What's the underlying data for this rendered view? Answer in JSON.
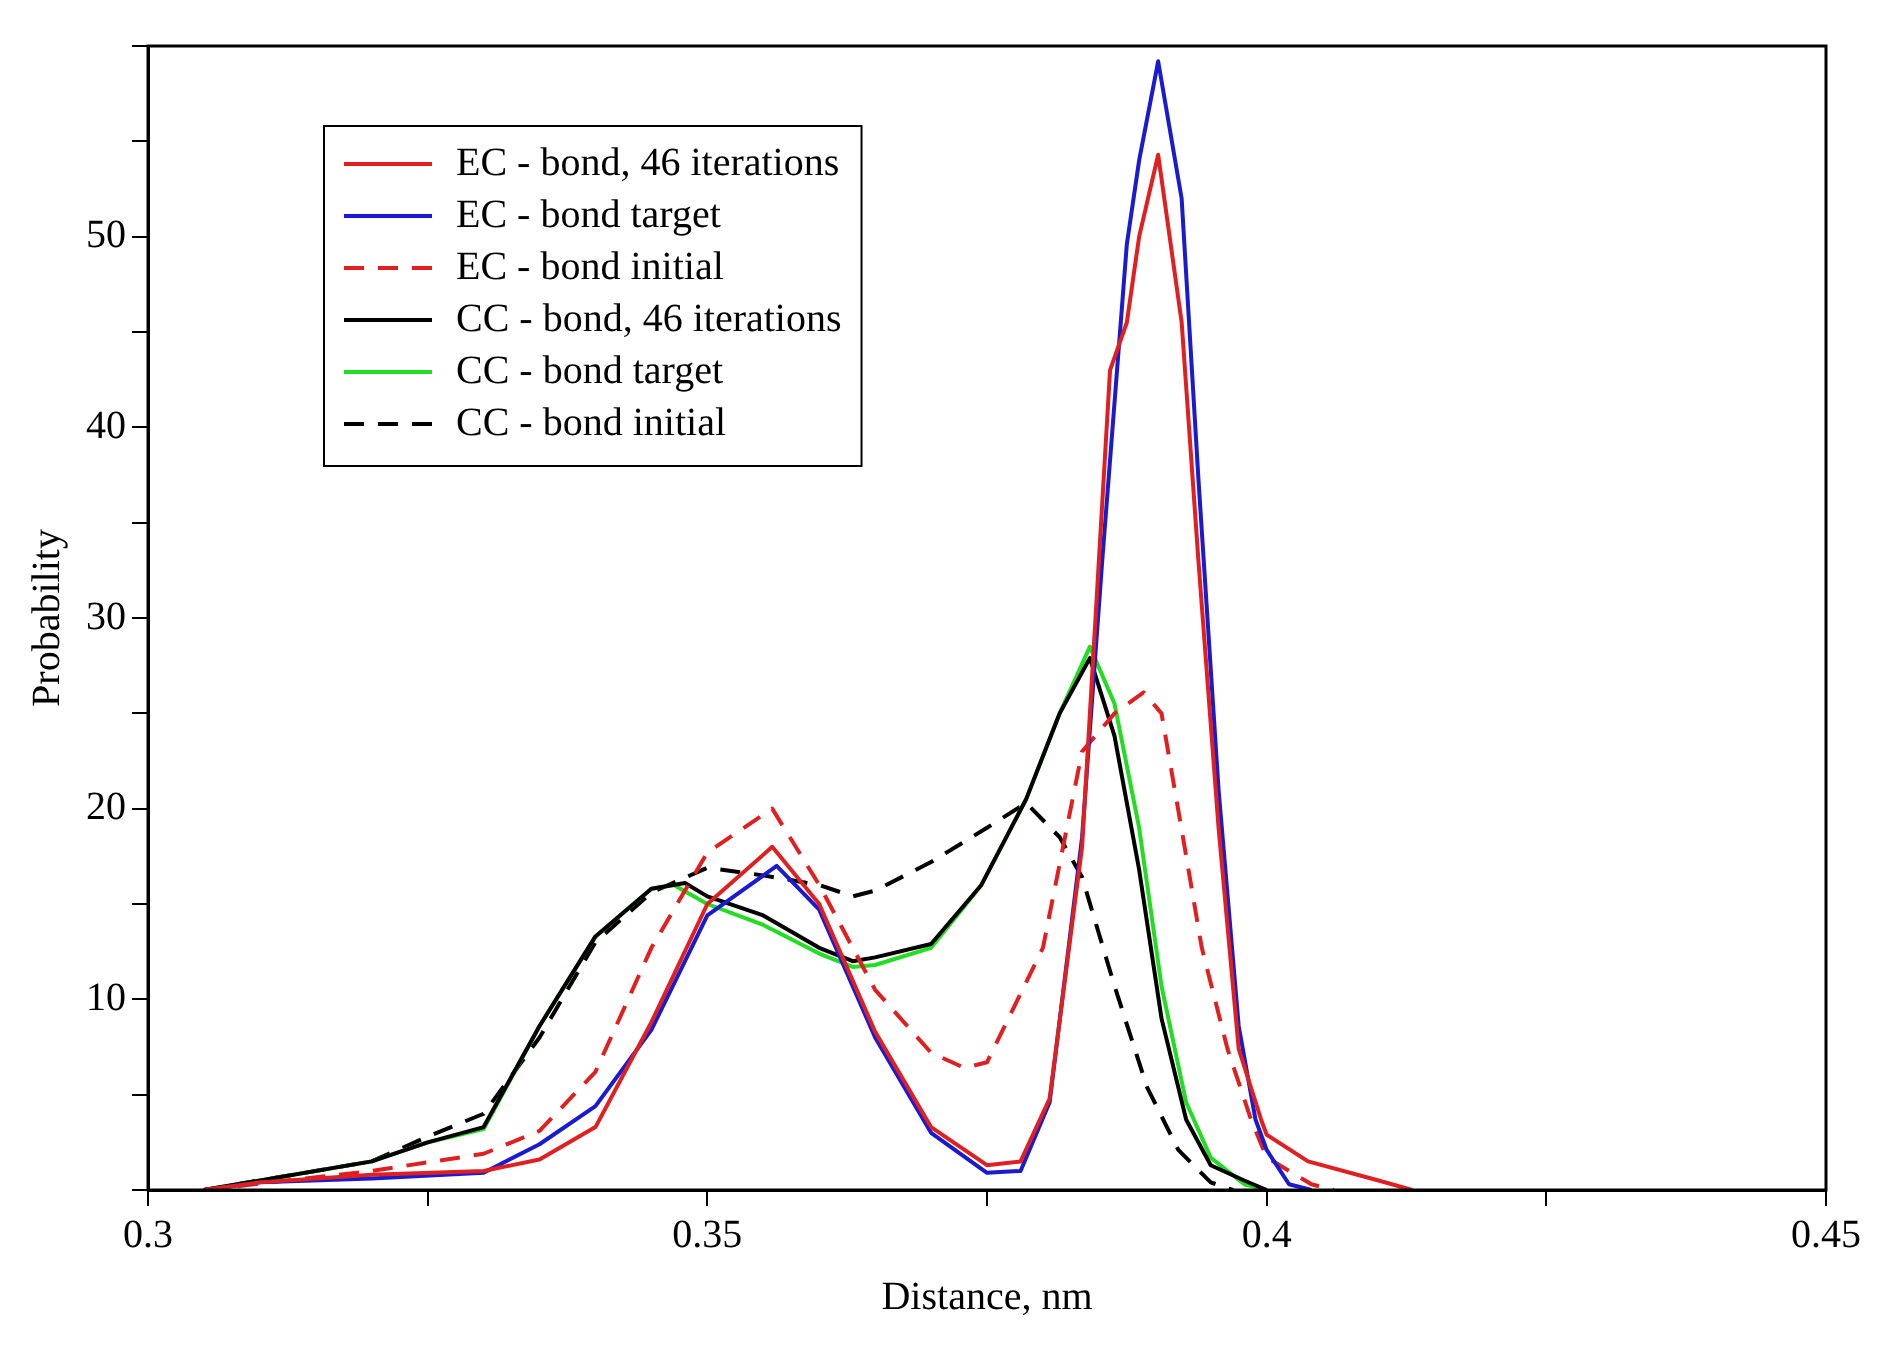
{
  "chart_data": {
    "type": "line",
    "xlabel": "Distance, nm",
    "ylabel": "Probability",
    "xlim": [
      0.3,
      0.45
    ],
    "ylim": [
      0,
      60
    ],
    "xticks": [
      0.3,
      {
        "value": 0.325,
        "label": null
      },
      0.35,
      {
        "value": 0.375,
        "label": null
      },
      0.4,
      {
        "value": 0.425,
        "label": null
      },
      0.45
    ],
    "yticks": [
      {
        "value": 0,
        "label": null
      },
      {
        "value": 5,
        "label": null
      },
      10,
      {
        "value": 15,
        "label": null
      },
      20,
      {
        "value": 25,
        "label": null
      },
      30,
      {
        "value": 35,
        "label": null
      },
      40,
      {
        "value": 45,
        "label": null
      },
      50,
      {
        "value": 55,
        "label": null
      },
      {
        "value": 60,
        "label": null
      }
    ],
    "grid": false,
    "legend": "top left",
    "marker": "none",
    "series": [
      {
        "name": "EC - bond, 46 iterations",
        "color": "#e02020",
        "line_style": "solid",
        "x": [
          0.305,
          0.31,
          0.32,
          0.33,
          0.335,
          0.34,
          0.345,
          0.35,
          0.3558,
          0.36,
          0.365,
          0.37,
          0.375,
          0.378,
          0.3806,
          0.3835,
          0.386,
          0.3875,
          0.3886,
          0.3903,
          0.3924,
          0.3939,
          0.3957,
          0.3975,
          0.3995,
          0.4,
          0.4037,
          0.41,
          0.413
        ],
        "values": [
          0,
          0.4,
          0.8,
          1,
          1.6,
          3.3,
          8.8,
          15,
          18,
          15,
          8.3,
          3.3,
          1.3,
          1.5,
          4.8,
          18,
          43,
          45.5,
          50,
          54.3,
          45.5,
          33,
          19,
          7.4,
          3.7,
          2.9,
          1.5,
          0.5,
          0
        ]
      },
      {
        "name": "EC - bond target",
        "color": "#1a1ad0",
        "line_style": "solid",
        "x": [
          0.305,
          0.31,
          0.32,
          0.33,
          0.335,
          0.34,
          0.345,
          0.35,
          0.3562,
          0.36,
          0.365,
          0.37,
          0.375,
          0.378,
          0.3806,
          0.3835,
          0.3853,
          0.3875,
          0.3886,
          0.3903,
          0.3924,
          0.3939,
          0.3957,
          0.3975,
          0.399,
          0.4,
          0.402,
          0.404
        ],
        "values": [
          0,
          0.4,
          0.6,
          0.9,
          2.4,
          4.4,
          8.4,
          14.4,
          17,
          14.7,
          8,
          3,
          0.9,
          1,
          4.6,
          18.5,
          33,
          49.6,
          54,
          59.2,
          52,
          37.3,
          21,
          8.6,
          3.7,
          2.1,
          0.3,
          0
        ]
      },
      {
        "name": "EC - bond initial",
        "color": "#e02020",
        "line_style": "dashed",
        "x": [
          0.305,
          0.32,
          0.33,
          0.335,
          0.34,
          0.345,
          0.35,
          0.3558,
          0.36,
          0.365,
          0.37,
          0.373,
          0.375,
          0.38,
          0.3835,
          0.3864,
          0.389,
          0.3906,
          0.3924,
          0.3942,
          0.3965,
          0.3986,
          0.4,
          0.404,
          0.406
        ],
        "values": [
          0,
          1,
          1.9,
          3.1,
          6.2,
          12.7,
          17.7,
          20,
          16,
          10.5,
          7.2,
          6.4,
          6.7,
          12.7,
          23,
          25,
          26.1,
          25,
          18.9,
          12.7,
          7.4,
          3.7,
          1.7,
          0.3,
          0
        ]
      },
      {
        "name": "CC - bond, 46 iterations",
        "color": "#000000",
        "line_style": "solid",
        "x": [
          0.305,
          0.32,
          0.325,
          0.33,
          0.335,
          0.34,
          0.345,
          0.348,
          0.35,
          0.355,
          0.36,
          0.363,
          0.365,
          0.37,
          0.3745,
          0.3785,
          0.3815,
          0.3842,
          0.3864,
          0.3886,
          0.3906,
          0.3928,
          0.395,
          0.398,
          0.4
        ],
        "values": [
          0,
          1.5,
          2.5,
          3.3,
          8.6,
          13.3,
          15.8,
          16.1,
          15.4,
          14.4,
          12.7,
          12,
          12.2,
          12.9,
          16,
          20.5,
          25,
          27.9,
          23.8,
          16.8,
          9,
          3.7,
          1.3,
          0.5,
          0
        ]
      },
      {
        "name": "CC - bond target",
        "color": "#22dd22",
        "line_style": "solid",
        "x": [
          0.305,
          0.32,
          0.325,
          0.33,
          0.335,
          0.34,
          0.345,
          0.347,
          0.35,
          0.355,
          0.36,
          0.363,
          0.365,
          0.37,
          0.3745,
          0.3785,
          0.3815,
          0.3842,
          0.3864,
          0.3886,
          0.3906,
          0.3928,
          0.395,
          0.398,
          0.4
        ],
        "values": [
          0,
          1.5,
          2.5,
          3.2,
          8.6,
          13.3,
          15.8,
          16,
          15,
          13.9,
          12.4,
          11.7,
          11.8,
          12.7,
          16,
          20.5,
          25,
          28.5,
          25.5,
          19,
          10.7,
          4.6,
          1.7,
          0.3,
          0
        ]
      },
      {
        "name": "CC - bond initial",
        "color": "#000000",
        "line_style": "dashed",
        "x": [
          0.305,
          0.32,
          0.325,
          0.33,
          0.335,
          0.34,
          0.345,
          0.35,
          0.355,
          0.36,
          0.363,
          0.365,
          0.37,
          0.375,
          0.3785,
          0.3815,
          0.3835,
          0.3864,
          0.3893,
          0.3921,
          0.395,
          0.397
        ],
        "values": [
          0,
          1.5,
          2.8,
          4,
          8,
          13,
          15.6,
          16.9,
          16.5,
          16,
          15.4,
          15.7,
          17.2,
          19,
          20.3,
          18.5,
          16.4,
          10.7,
          5.4,
          2.1,
          0.4,
          0
        ]
      }
    ]
  }
}
